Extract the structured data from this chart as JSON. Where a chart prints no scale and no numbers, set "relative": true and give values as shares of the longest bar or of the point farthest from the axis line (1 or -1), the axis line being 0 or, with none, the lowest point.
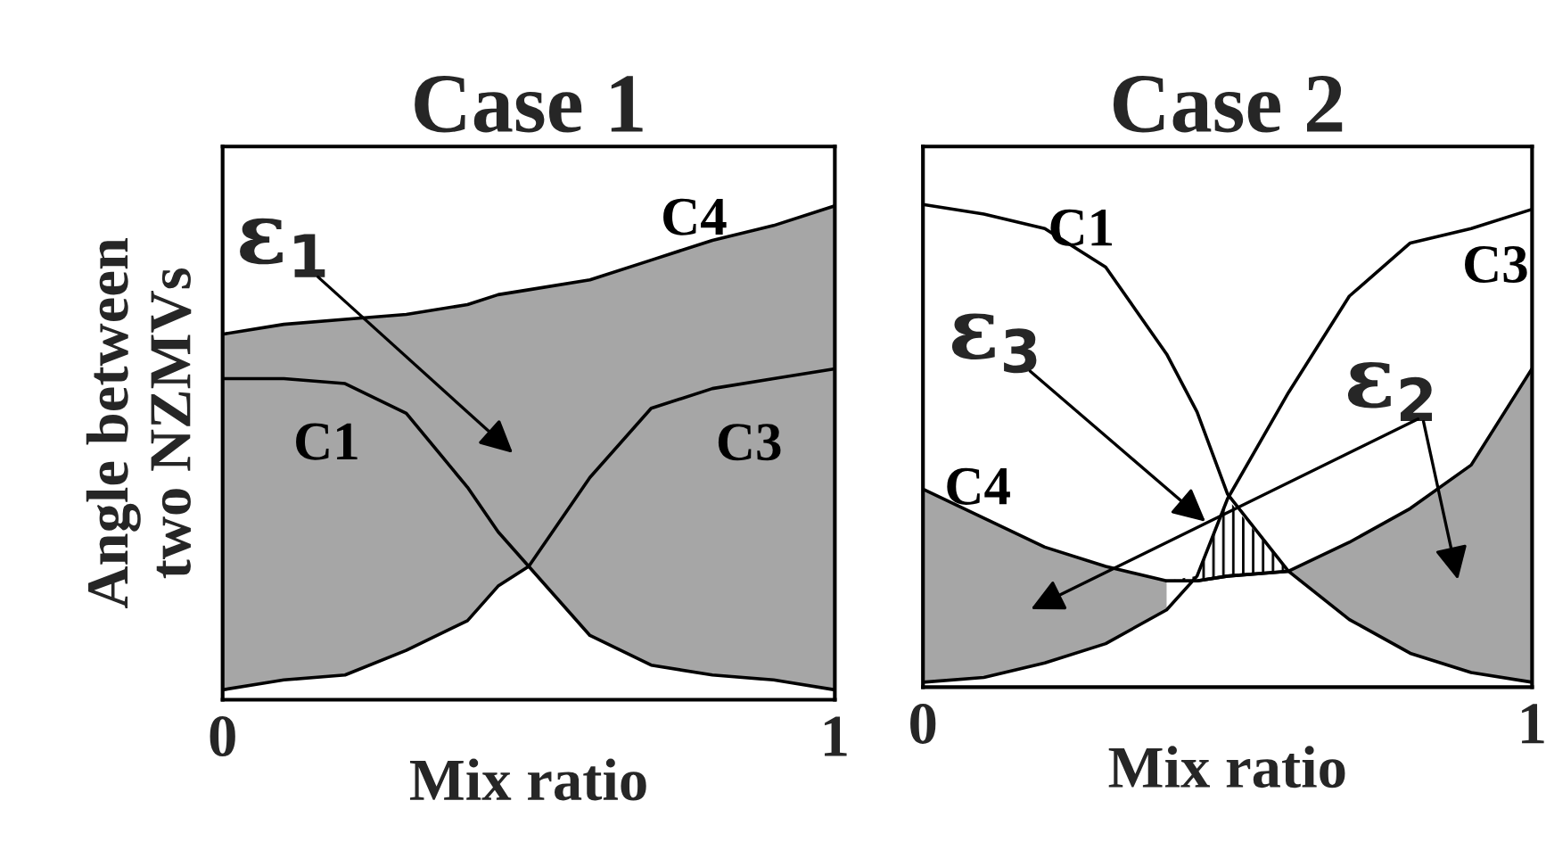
{
  "chart_data": [
    {
      "type": "line",
      "title": "Case 1",
      "xlabel": "Mix ratio",
      "ylabel": "Angle between\ntwo NZMVs",
      "relative": true,
      "xlim": [
        0,
        1
      ],
      "xticks": [
        0,
        1
      ],
      "x": [
        0,
        0.1,
        0.2,
        0.3,
        0.4,
        0.45,
        0.5,
        0.6,
        0.7,
        0.8,
        0.9,
        1
      ],
      "series": [
        {
          "name": "C1",
          "color": "#000000",
          "values": [
            0.65,
            0.65,
            0.64,
            0.58,
            0.43,
            0.34,
            0.27,
            0.13,
            0.07,
            0.05,
            0.04,
            0.02
          ]
        },
        {
          "name": "C3",
          "color": "#000000",
          "values": [
            0.02,
            0.04,
            0.05,
            0.1,
            0.16,
            0.23,
            0.27,
            0.45,
            0.59,
            0.63,
            0.65,
            0.67
          ]
        },
        {
          "name": "C4",
          "color": "#000000",
          "values": [
            0.74,
            0.76,
            0.77,
            0.78,
            0.8,
            0.82,
            0.83,
            0.85,
            0.89,
            0.93,
            0.96,
            1.0
          ],
          "upper": [
            0.74,
            0.76,
            0.77,
            0.78,
            0.8,
            0.82,
            0.83,
            0.85,
            0.89,
            0.93,
            0.96,
            1.0
          ],
          "lower": [
            0.02,
            0.04,
            0.05,
            0.1,
            0.16,
            0.23,
            0.27,
            0.13,
            0.07,
            0.05,
            0.04,
            0.02
          ]
        }
      ],
      "annotations": [
        "ε$_{1}$"
      ]
    },
    {
      "type": "line",
      "title": "Case 2",
      "xlabel": "Mix ratio",
      "relative": true,
      "xlim": [
        0,
        1
      ],
      "xticks": [
        0,
        1
      ],
      "x": [
        0,
        0.1,
        0.2,
        0.3,
        0.4,
        0.45,
        0.5,
        0.6,
        0.7,
        0.8,
        0.9,
        1
      ],
      "series": [
        {
          "name": "C1",
          "color": "#000000",
          "values": [
            1.0,
            0.98,
            0.95,
            0.87,
            0.69,
            0.57,
            0.4,
            0.24,
            0.14,
            0.07,
            0.03,
            0.01
          ]
        },
        {
          "name": "C3",
          "color": "#000000",
          "values": [
            0.01,
            0.02,
            0.05,
            0.09,
            0.16,
            0.23,
            0.39,
            0.61,
            0.81,
            0.92,
            0.95,
            0.99
          ]
        },
        {
          "name": "C4",
          "color": "#000000",
          "values": [
            0.41,
            0.35,
            0.29,
            0.25,
            0.22,
            0.22,
            0.23,
            0.24,
            0.3,
            0.37,
            0.46,
            0.66
          ],
          "upper": [
            0.41,
            0.35,
            0.29,
            0.25,
            0.22,
            null,
            null,
            0.24,
            0.3,
            0.37,
            0.46,
            0.66
          ],
          "lower": [
            0.01,
            0.02,
            0.05,
            0.09,
            0.16,
            null,
            null,
            0.24,
            0.14,
            0.07,
            0.03,
            0.01
          ]
        },
        {
          "color": "#000000",
          "values": [
            null,
            null,
            null,
            null,
            0.22,
            0.22,
            0.23,
            0.24,
            null,
            null,
            null,
            null
          ],
          "upper": [
            null,
            null,
            null,
            null,
            0.22,
            0.23,
            0.39,
            0.24,
            null,
            null,
            null,
            null
          ],
          "lower": [
            null,
            null,
            null,
            null,
            0.22,
            0.22,
            0.23,
            0.24,
            null,
            null,
            null,
            null
          ]
        }
      ],
      "annotations": [
        "ε$_{3}$",
        "ε$_{2}$"
      ]
    }
  ]
}
